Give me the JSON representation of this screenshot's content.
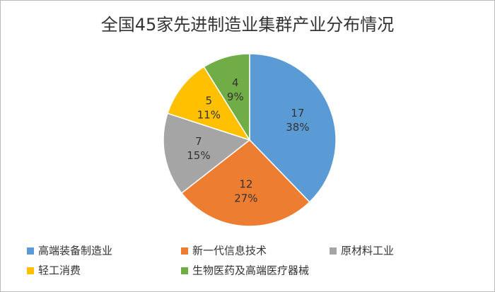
{
  "chart_data": {
    "type": "pie",
    "title": "全国45家先进制造业集群产业分布情况",
    "categories": [
      "高端装备制造业",
      "新一代信息技术",
      "原材料工业",
      "轻工消费",
      "生物医药及高端医疗器械"
    ],
    "values": [
      17,
      12,
      7,
      5,
      4
    ],
    "percent_labels": [
      "38%",
      "27%",
      "15%",
      "11%",
      "9%"
    ],
    "colors": [
      "#5b9bd5",
      "#ed7d31",
      "#a5a5a5",
      "#ffc000",
      "#70ad47"
    ],
    "legend": "bottom"
  }
}
